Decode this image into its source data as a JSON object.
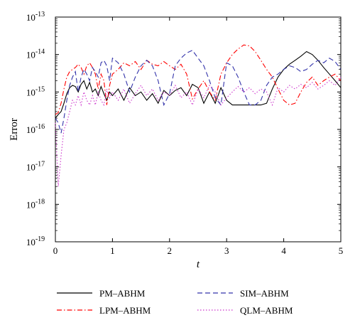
{
  "chart_data": {
    "type": "line",
    "title": "",
    "xlabel": "t",
    "ylabel": "Error",
    "xlim": [
      0,
      5
    ],
    "ylim_exponent": [
      -19,
      -13
    ],
    "yscale": "log",
    "grid": false,
    "legend_position": "bottom",
    "x_ticks": [
      "0",
      "1",
      "2",
      "3",
      "4",
      "5"
    ],
    "y_ticks": [
      {
        "base": "10",
        "exp": "-19"
      },
      {
        "base": "10",
        "exp": "-18"
      },
      {
        "base": "10",
        "exp": "-17"
      },
      {
        "base": "10",
        "exp": "-16"
      },
      {
        "base": "10",
        "exp": "-15"
      },
      {
        "base": "10",
        "exp": "-14"
      },
      {
        "base": "10",
        "exp": "-13"
      }
    ],
    "series": [
      {
        "name": "PM–ABHM",
        "color": "#000000",
        "dash": "solid",
        "x": [
          0,
          0.05,
          0.1,
          0.15,
          0.2,
          0.25,
          0.3,
          0.35,
          0.4,
          0.45,
          0.5,
          0.55,
          0.6,
          0.65,
          0.7,
          0.75,
          0.8,
          0.85,
          0.9,
          0.95,
          1.0,
          1.1,
          1.2,
          1.3,
          1.4,
          1.5,
          1.6,
          1.7,
          1.8,
          1.9,
          2.0,
          2.1,
          2.2,
          2.3,
          2.4,
          2.5,
          2.6,
          2.7,
          2.8,
          2.9,
          3.0,
          3.1,
          3.2,
          3.3,
          3.4,
          3.5,
          3.6,
          3.7,
          3.8,
          3.9,
          4.0,
          4.1,
          4.2,
          4.3,
          4.4,
          4.5,
          4.6,
          4.7,
          4.8,
          4.9,
          5.0
        ],
        "y": [
          2e-16,
          2.5e-16,
          3e-16,
          5e-16,
          9e-16,
          1.3e-15,
          1.5e-15,
          1.4e-15,
          1e-15,
          1.6e-15,
          2e-15,
          1.2e-15,
          1.8e-15,
          1e-15,
          1.2e-15,
          8e-16,
          1.4e-15,
          9e-16,
          6e-16,
          1e-15,
          8e-16,
          1.2e-15,
          6e-16,
          1.3e-15,
          8e-16,
          1e-15,
          6e-16,
          9e-16,
          5e-16,
          1.1e-15,
          8e-16,
          1.1e-15,
          1.3e-15,
          8e-16,
          1.6e-15,
          1.3e-15,
          5e-16,
          1e-15,
          5e-16,
          1.3e-15,
          6e-16,
          4.5e-16,
          4.5e-16,
          4.5e-16,
          4.5e-16,
          4.5e-16,
          4.5e-16,
          5e-16,
          1.2e-15,
          2.5e-15,
          4e-15,
          5.5e-15,
          7e-15,
          9e-15,
          1.2e-14,
          1e-14,
          7e-15,
          4.5e-15,
          3e-15,
          2e-15,
          1.3e-15
        ]
      },
      {
        "name": "LPM–ABHM",
        "color": "#ff0000",
        "dash": "dashdot",
        "x": [
          0,
          0.05,
          0.1,
          0.15,
          0.2,
          0.25,
          0.3,
          0.35,
          0.4,
          0.45,
          0.5,
          0.55,
          0.6,
          0.65,
          0.7,
          0.75,
          0.8,
          0.85,
          0.9,
          0.95,
          1.0,
          1.1,
          1.2,
          1.3,
          1.4,
          1.5,
          1.6,
          1.7,
          1.8,
          1.9,
          2.0,
          2.1,
          2.2,
          2.3,
          2.4,
          2.5,
          2.6,
          2.7,
          2.8,
          2.9,
          3.0,
          3.1,
          3.2,
          3.3,
          3.4,
          3.5,
          3.6,
          3.7,
          3.8,
          3.9,
          4.0,
          4.1,
          4.2,
          4.3,
          4.4,
          4.5,
          4.6,
          4.7,
          4.8,
          4.9,
          5.0
        ],
        "y": [
          2.5e-16,
          2.8e-16,
          5e-16,
          1.2e-15,
          2.5e-15,
          3.5e-15,
          4e-15,
          4.5e-15,
          5.5e-15,
          4.5e-15,
          3e-15,
          5e-15,
          6e-15,
          4.5e-15,
          3e-15,
          1.2e-15,
          3e-15,
          2e-15,
          4.5e-16,
          1.5e-15,
          3e-15,
          4e-15,
          6e-15,
          5e-15,
          6.5e-15,
          4e-15,
          7e-15,
          5.5e-15,
          5e-15,
          6.5e-15,
          5e-15,
          4e-15,
          5.5e-15,
          3e-15,
          6.5e-16,
          1.2e-15,
          2e-15,
          1e-15,
          6e-16,
          3e-15,
          6e-15,
          1e-14,
          1.4e-14,
          1.8e-14,
          1.7e-14,
          1.2e-14,
          7e-15,
          4e-15,
          2.5e-15,
          1.2e-15,
          6e-16,
          4.5e-16,
          5e-16,
          1e-15,
          1.8e-15,
          2.5e-15,
          1.5e-15,
          2e-15,
          2.5e-15,
          3e-15,
          2e-15
        ]
      },
      {
        "name": "SIM–ABHM",
        "color": "#3333aa",
        "dash": "dashed",
        "x": [
          0,
          0.05,
          0.1,
          0.15,
          0.2,
          0.25,
          0.3,
          0.35,
          0.4,
          0.45,
          0.5,
          0.55,
          0.6,
          0.65,
          0.7,
          0.75,
          0.8,
          0.85,
          0.9,
          0.95,
          1.0,
          1.1,
          1.2,
          1.3,
          1.4,
          1.5,
          1.6,
          1.7,
          1.8,
          1.9,
          2.0,
          2.1,
          2.2,
          2.3,
          2.4,
          2.5,
          2.6,
          2.7,
          2.8,
          2.9,
          3.0,
          3.1,
          3.2,
          3.3,
          3.4,
          3.5,
          3.6,
          3.7,
          3.8,
          3.9,
          4.0,
          4.1,
          4.2,
          4.3,
          4.4,
          4.5,
          4.6,
          4.7,
          4.8,
          4.9,
          5.0
        ],
        "y": [
          2e-16,
          1.5e-16,
          8e-17,
          2e-16,
          6e-16,
          1.5e-15,
          2.5e-15,
          3.5e-15,
          1e-15,
          2.5e-15,
          4e-15,
          3e-15,
          2e-15,
          4.5e-15,
          3.5e-15,
          2.5e-15,
          6e-15,
          7e-15,
          5e-15,
          2e-15,
          8e-15,
          6e-15,
          3e-15,
          1e-15,
          2.5e-15,
          5e-15,
          7e-15,
          5e-15,
          2e-15,
          4.5e-16,
          9e-16,
          5e-15,
          8e-15,
          1.1e-14,
          1.3e-14,
          8e-15,
          5e-15,
          2e-15,
          7e-16,
          4.5e-16,
          6e-15,
          5e-15,
          2.5e-15,
          1e-15,
          4.5e-16,
          4.5e-16,
          6e-16,
          1.5e-15,
          2.5e-15,
          3e-15,
          4e-15,
          5e-15,
          4.5e-15,
          3.5e-15,
          4e-15,
          5.5e-15,
          7e-15,
          6e-15,
          8e-15,
          6.5e-15,
          4e-15
        ]
      },
      {
        "name": "QLM–ABHM",
        "color": "#cc33cc",
        "dash": "dotted",
        "x": [
          0,
          0.05,
          0.1,
          0.15,
          0.2,
          0.25,
          0.3,
          0.35,
          0.4,
          0.45,
          0.5,
          0.55,
          0.6,
          0.65,
          0.7,
          0.75,
          0.8,
          0.85,
          0.9,
          0.95,
          1.0,
          1.1,
          1.2,
          1.3,
          1.4,
          1.5,
          1.6,
          1.7,
          1.8,
          1.9,
          2.0,
          2.1,
          2.2,
          2.3,
          2.4,
          2.5,
          2.6,
          2.7,
          2.8,
          2.9,
          3.0,
          3.1,
          3.2,
          3.3,
          3.4,
          3.5,
          3.6,
          3.7,
          3.8,
          3.9,
          4.0,
          4.1,
          4.2,
          4.3,
          4.4,
          4.5,
          4.6,
          4.7,
          4.8,
          4.9,
          5.0
        ],
        "y": [
          1.5e-16,
          3e-18,
          2e-17,
          1e-16,
          1.5e-16,
          3e-16,
          6e-16,
          4.5e-16,
          8e-16,
          4.5e-16,
          1e-15,
          6e-16,
          4.5e-16,
          8e-16,
          4.5e-16,
          1e-15,
          6e-16,
          4.5e-16,
          1.2e-15,
          7e-16,
          1e-15,
          6e-16,
          1.2e-15,
          5e-16,
          9e-16,
          1.5e-15,
          8e-16,
          1.2e-15,
          6e-16,
          1e-15,
          8e-16,
          1.5e-15,
          7e-16,
          1e-15,
          4.5e-16,
          1.2e-15,
          7e-16,
          1.5e-15,
          1e-15,
          4.5e-16,
          7e-16,
          1e-15,
          1.4e-15,
          1e-15,
          1.3e-15,
          9e-16,
          1.2e-15,
          1e-15,
          4.5e-16,
          1.3e-15,
          1e-15,
          1.5e-15,
          1.2e-15,
          1.6e-15,
          1.3e-15,
          1.8e-15,
          1.2e-15,
          1.5e-15,
          2e-15,
          1.5e-15,
          2.5e-15
        ]
      }
    ]
  }
}
